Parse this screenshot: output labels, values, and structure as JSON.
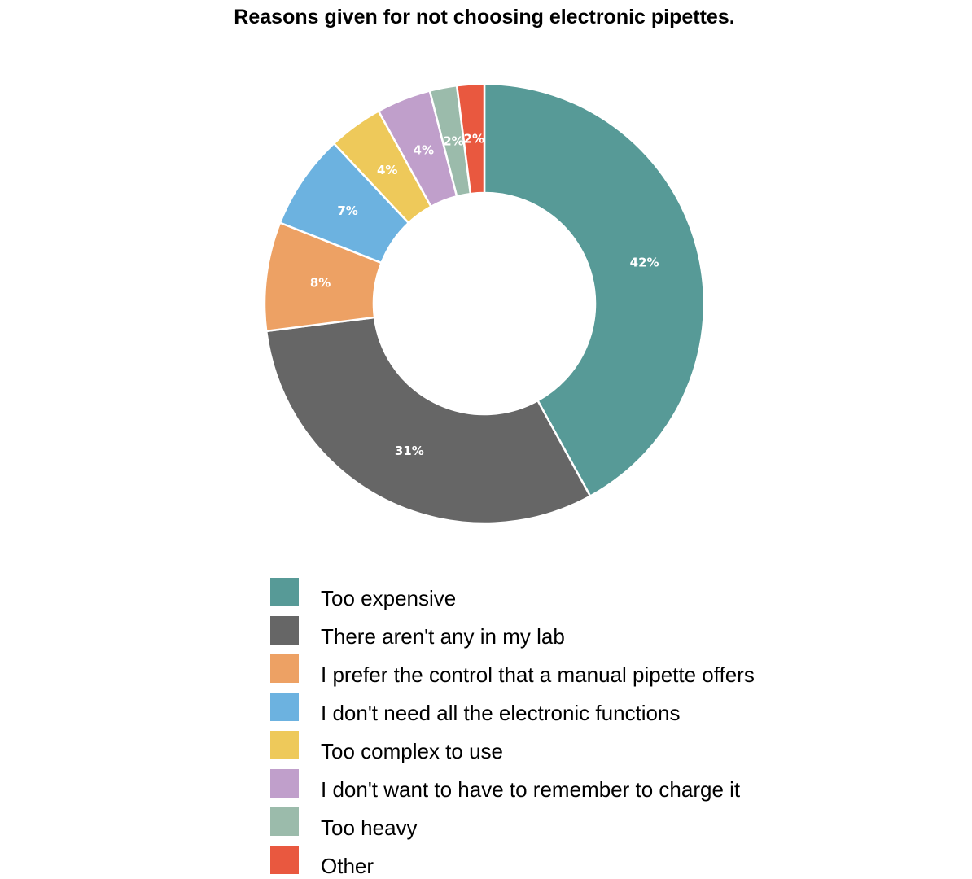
{
  "chart_data": {
    "type": "pie",
    "variant": "donut",
    "title": "Reasons given for not choosing electronic pipettes.",
    "legend_position": "bottom",
    "series": [
      {
        "name": "Too expensive",
        "value": 42,
        "label": "42%",
        "color": "#579a97"
      },
      {
        "name": "There aren't any in my lab",
        "value": 31,
        "label": "31%",
        "color": "#666666"
      },
      {
        "name": "I prefer the control that a manual pipette offers",
        "value": 8,
        "label": "8%",
        "color": "#eda164"
      },
      {
        "name": "I don't need all the electronic functions",
        "value": 7,
        "label": "7%",
        "color": "#6cb2e0"
      },
      {
        "name": "Too complex to use",
        "value": 4,
        "label": "4%",
        "color": "#eec95a"
      },
      {
        "name": "I don't want to have to remember to charge it",
        "value": 4,
        "label": "4%",
        "color": "#c09fcb"
      },
      {
        "name": "Too heavy",
        "value": 2,
        "label": "2%",
        "color": "#9bbbab"
      },
      {
        "name": "Other",
        "value": 2,
        "label": "2%",
        "color": "#e9583f"
      }
    ]
  }
}
